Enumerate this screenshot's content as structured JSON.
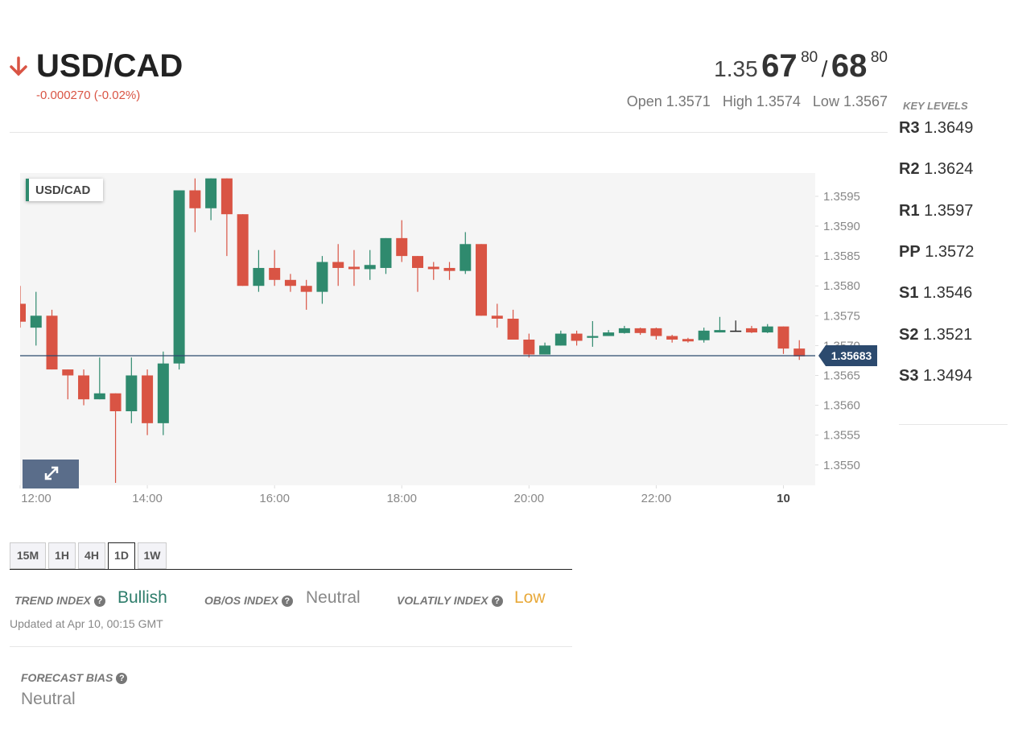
{
  "header": {
    "symbol": "USD/CAD",
    "change": "-0.000270 (-0.02%)",
    "bid": {
      "big": "1.35",
      "pips": "67",
      "fraction": "80"
    },
    "separator": "/",
    "ask": {
      "pips": "68",
      "fraction": "80"
    },
    "stats": [
      "Open 1.3571",
      "High 1.3574",
      "Low 1.3567"
    ]
  },
  "key_levels": {
    "title": "KEY LEVELS",
    "levels": [
      {
        "name": "R3",
        "value": "1.3649"
      },
      {
        "name": "R2",
        "value": "1.3624"
      },
      {
        "name": "R1",
        "value": "1.3597"
      },
      {
        "name": "PP",
        "value": "1.3572"
      },
      {
        "name": "S1",
        "value": "1.3546"
      },
      {
        "name": "S2",
        "value": "1.3521"
      },
      {
        "name": "S3",
        "value": "1.3494"
      }
    ]
  },
  "chart_data": {
    "type": "candlestick",
    "legend": "USD/CAD",
    "x": [
      12,
      12.25,
      12.5,
      12.75,
      13,
      13.25,
      13.5,
      13.75,
      14,
      14.25,
      14.5,
      14.75,
      15,
      15.25,
      15.5,
      15.75,
      16,
      16.25,
      16.5,
      16.75,
      17,
      17.25,
      17.5,
      17.75,
      18,
      18.25,
      18.5,
      18.75,
      19,
      19.25,
      19.5,
      19.75,
      20,
      20.25,
      20.5,
      20.75,
      21,
      21.25,
      21.5,
      21.75,
      22,
      22.25,
      22.5,
      22.75,
      23,
      23.25,
      23.5,
      23.75,
      24,
      24.25
    ],
    "open": [
      1.3577,
      1.3573,
      1.3575,
      1.3566,
      1.3565,
      1.3561,
      1.3562,
      1.3559,
      1.3565,
      1.3557,
      1.3567,
      1.3596,
      1.3593,
      1.3598,
      1.3592,
      1.358,
      1.3583,
      1.3581,
      1.358,
      1.3579,
      1.3584,
      1.35832,
      1.35828,
      1.3583,
      1.3588,
      1.3585,
      1.35832,
      1.3583,
      1.35825,
      1.3587,
      1.3575,
      1.35745,
      1.3571,
      1.35685,
      1.357,
      1.3572,
      1.35713,
      1.35716,
      1.35721,
      1.35729,
      1.35729,
      1.35716,
      1.35711,
      1.35709,
      1.35722,
      1.35725,
      1.35729,
      1.35722,
      1.35732,
      1.35695
    ],
    "high": [
      1.358,
      1.3579,
      1.3576,
      1.3566,
      1.3566,
      1.3568,
      1.3562,
      1.3568,
      1.3566,
      1.3569,
      1.3596,
      1.3598,
      1.3598,
      1.3598,
      1.3592,
      1.3586,
      1.3586,
      1.3582,
      1.3581,
      1.3585,
      1.3587,
      1.3586,
      1.3586,
      1.3588,
      1.3591,
      1.3585,
      1.3584,
      1.3584,
      1.3589,
      1.3587,
      1.3577,
      1.3576,
      1.3572,
      1.35705,
      1.35725,
      1.35725,
      1.35741,
      1.35726,
      1.35733,
      1.3573,
      1.3573,
      1.35718,
      1.35713,
      1.3573,
      1.35748,
      1.35742,
      1.35733,
      1.35736,
      1.35732,
      1.35709
    ],
    "low": [
      1.3573,
      1.357,
      1.3566,
      1.3561,
      1.356,
      1.3561,
      1.3547,
      1.3557,
      1.3555,
      1.3555,
      1.3566,
      1.3589,
      1.3591,
      1.3585,
      1.358,
      1.3579,
      1.358,
      1.3579,
      1.3576,
      1.3577,
      1.358,
      1.358,
      1.3581,
      1.3582,
      1.3584,
      1.3579,
      1.3581,
      1.3581,
      1.3582,
      1.3575,
      1.3573,
      1.3571,
      1.3568,
      1.35685,
      1.357,
      1.357,
      1.35698,
      1.35716,
      1.3572,
      1.35718,
      1.3571,
      1.35705,
      1.35705,
      1.35705,
      1.35722,
      1.35724,
      1.35721,
      1.35721,
      1.35686,
      1.35676
    ],
    "close": [
      1.3574,
      1.3575,
      1.3566,
      1.3565,
      1.3561,
      1.3562,
      1.3559,
      1.3565,
      1.3557,
      1.3567,
      1.3596,
      1.3593,
      1.3598,
      1.3592,
      1.358,
      1.3583,
      1.3581,
      1.358,
      1.3579,
      1.3584,
      1.3583,
      1.35828,
      1.35835,
      1.3588,
      1.3585,
      1.3583,
      1.35828,
      1.35825,
      1.3587,
      1.3575,
      1.35745,
      1.3571,
      1.35685,
      1.357,
      1.3572,
      1.35708,
      1.35716,
      1.35722,
      1.35729,
      1.35721,
      1.35716,
      1.3571,
      1.35707,
      1.35725,
      1.35726,
      1.35725,
      1.35722,
      1.35732,
      1.35695,
      1.35682
    ],
    "up_color": "#2f8a6e",
    "down_color": "#d95444",
    "flat_color": "#222222",
    "current_price": 1.35683,
    "current_color": "#2c4a6e",
    "xlim": [
      12,
      24.5
    ],
    "xticks": [
      {
        "value": 12,
        "label": "12:00"
      },
      {
        "value": 14,
        "label": "14:00"
      },
      {
        "value": 16,
        "label": "16:00"
      },
      {
        "value": 18,
        "label": "18:00"
      },
      {
        "value": 20,
        "label": "20:00"
      },
      {
        "value": 22,
        "label": "22:00"
      },
      {
        "value": 24,
        "label": "10"
      }
    ],
    "ylim": [
      1.35466,
      1.35989
    ],
    "yticks": [
      {
        "value": 1.355,
        "label": "1.3550"
      },
      1.3555,
      {
        "value": 1.356,
        "label": "1.3560"
      },
      1.3565,
      {
        "value": 1.357,
        "label": "1.3570"
      },
      1.3575,
      {
        "value": 1.358,
        "label": "1.3580"
      },
      1.3585,
      {
        "value": 1.359,
        "label": "1.3590"
      },
      1.3595
    ]
  },
  "timeframes": {
    "tabs": [
      "15M",
      "1H",
      "4H",
      "1D",
      "1W"
    ],
    "active": 3
  },
  "indices": [
    {
      "label": "TREND INDEX",
      "value": "Bullish",
      "color": "#2e7d6b"
    },
    {
      "label": "OB/OS INDEX",
      "value": "Neutral",
      "color": "#888888"
    },
    {
      "label": "VOLATILY INDEX",
      "value": "Low",
      "color": "#e8a93a"
    }
  ],
  "updated": "Updated at Apr 10, 00:15 GMT",
  "forecast": {
    "label": "FORECAST BIAS",
    "value": "Neutral"
  }
}
